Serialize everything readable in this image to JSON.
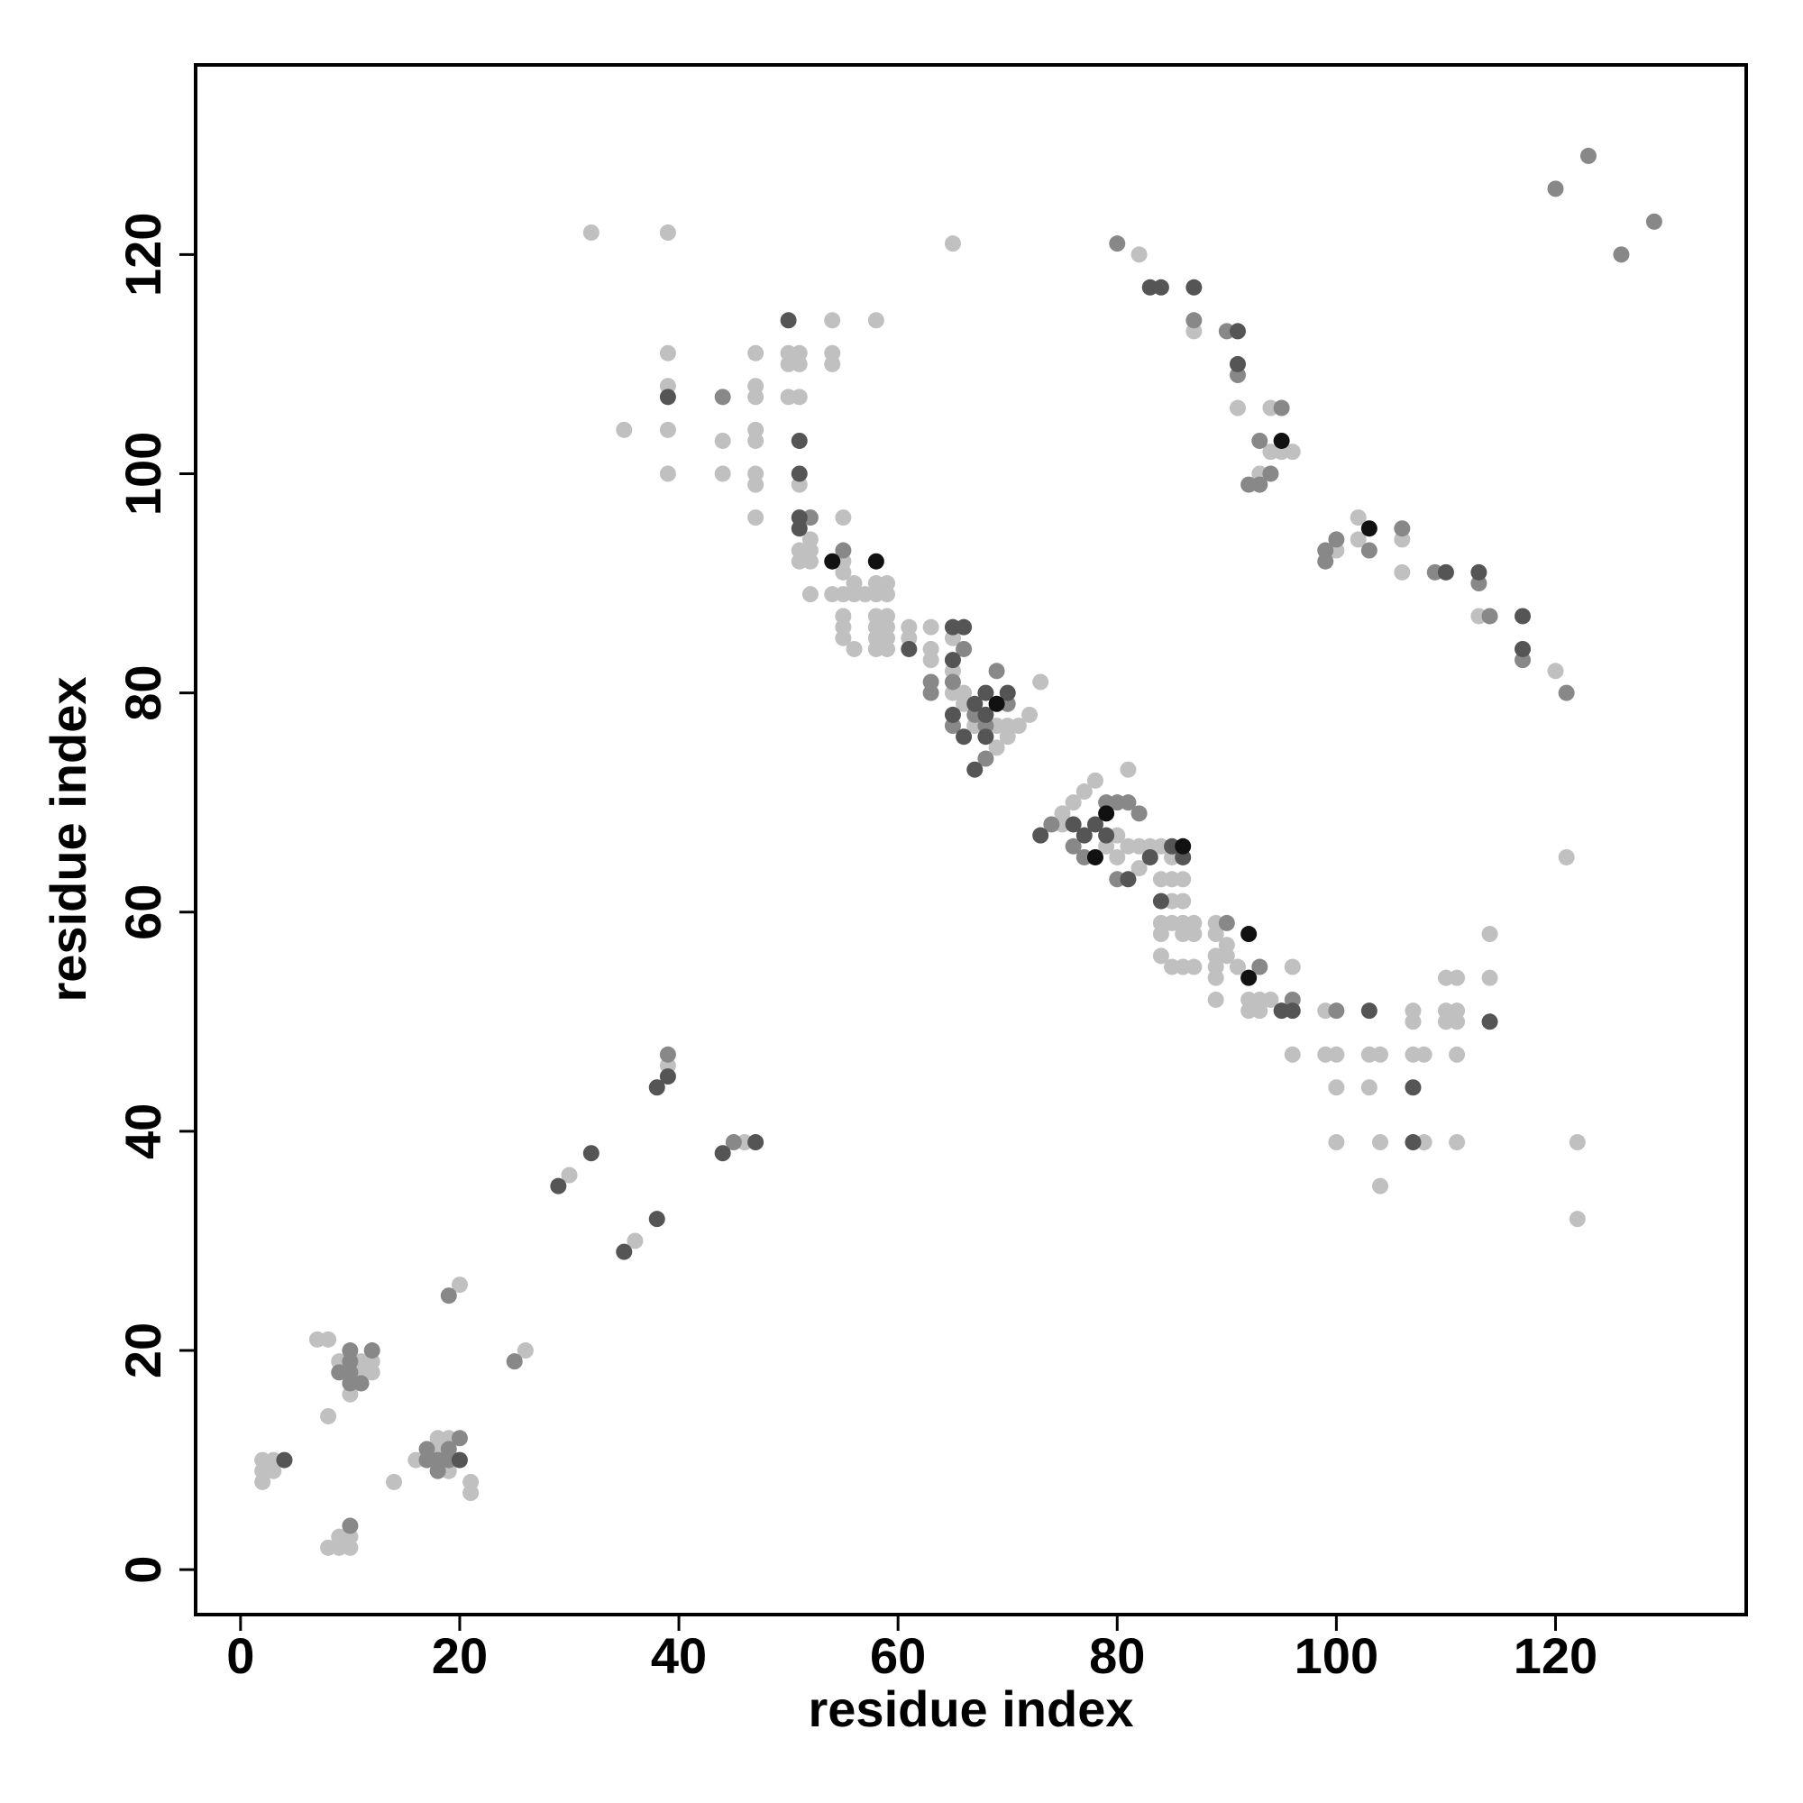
{
  "chart_data": {
    "type": "scatter",
    "x_label": "residue index",
    "y_label": "residue index",
    "xlim": [
      -4.1,
      137.4
    ],
    "ylim": [
      -4.1,
      137.3
    ],
    "xticks": [
      0,
      20,
      40,
      60,
      80,
      100,
      120
    ],
    "yticks": [
      0,
      20,
      40,
      60,
      80,
      100,
      120
    ],
    "grid": false,
    "series": [
      {
        "color": "#c0c0c0",
        "x": [
          2,
          2,
          2,
          3,
          3,
          8,
          9,
          9,
          10,
          10,
          7,
          8,
          8,
          9,
          10,
          11,
          11,
          12,
          12,
          14,
          16,
          18,
          18,
          19,
          19,
          21,
          21,
          20,
          26,
          30,
          36,
          39,
          46,
          32,
          39,
          35,
          39,
          39,
          39,
          39,
          44,
          44,
          47,
          47,
          47,
          47,
          47,
          47,
          47,
          47,
          50,
          50,
          50,
          51,
          51,
          51,
          51,
          51,
          51,
          52,
          52,
          52,
          52,
          54,
          54,
          54,
          54,
          55,
          55,
          55,
          55,
          55,
          55,
          55,
          56,
          56,
          56,
          57,
          58,
          58,
          58,
          58,
          58,
          58,
          58,
          59,
          59,
          59,
          59,
          59,
          59,
          61,
          61,
          63,
          63,
          63,
          65,
          65,
          65,
          66,
          66,
          67,
          69,
          69,
          70,
          70,
          71,
          72,
          73,
          65,
          75,
          75,
          76,
          77,
          78,
          79,
          80,
          80,
          81,
          81,
          82,
          82,
          83,
          84,
          84,
          85,
          85,
          85,
          85,
          86,
          86,
          84,
          84,
          84,
          85,
          86,
          86,
          86,
          87,
          87,
          87,
          89,
          89,
          89,
          89,
          89,
          89,
          90,
          90,
          91,
          92,
          92,
          93,
          93,
          94,
          96,
          96,
          99,
          99,
          100,
          100,
          100,
          103,
          103,
          104,
          104,
          104,
          107,
          107,
          107,
          108,
          108,
          110,
          110,
          110,
          111,
          111,
          111,
          111,
          111,
          114,
          114,
          121,
          122,
          122,
          82,
          87,
          91,
          94,
          94,
          95,
          96,
          93,
          100,
          102,
          102,
          106,
          106,
          113,
          120
        ],
        "values": [
          8,
          9,
          10,
          9,
          10,
          2,
          2,
          3,
          2,
          3,
          21,
          21,
          14,
          19,
          16,
          19,
          18,
          18,
          19,
          8,
          10,
          11,
          12,
          9,
          12,
          8,
          7,
          26,
          20,
          36,
          30,
          46,
          39,
          122,
          122,
          104,
          111,
          108,
          104,
          100,
          103,
          100,
          111,
          108,
          107,
          104,
          103,
          100,
          99,
          96,
          111,
          110,
          107,
          111,
          110,
          107,
          99,
          93,
          92,
          94,
          93,
          92,
          89,
          114,
          111,
          110,
          89,
          96,
          92,
          91,
          89,
          87,
          86,
          85,
          90,
          89,
          84,
          89,
          114,
          90,
          89,
          87,
          86,
          85,
          84,
          90,
          89,
          87,
          86,
          85,
          84,
          86,
          85,
          86,
          84,
          83,
          85,
          82,
          80,
          80,
          79,
          77,
          77,
          75,
          77,
          76,
          77,
          78,
          81,
          121,
          68,
          69,
          70,
          71,
          72,
          66,
          67,
          65,
          73,
          66,
          66,
          64,
          66,
          66,
          63,
          65,
          63,
          61,
          59,
          63,
          61,
          59,
          58,
          56,
          55,
          59,
          58,
          55,
          59,
          58,
          55,
          59,
          58,
          56,
          55,
          54,
          52,
          57,
          56,
          55,
          52,
          51,
          52,
          51,
          52,
          55,
          47,
          51,
          47,
          47,
          44,
          39,
          47,
          44,
          47,
          39,
          35,
          51,
          50,
          47,
          47,
          39,
          54,
          51,
          50,
          54,
          51,
          50,
          47,
          39,
          58,
          54,
          65,
          39,
          32,
          120,
          113,
          106,
          106,
          102,
          102,
          102,
          100,
          93,
          96,
          94,
          94,
          91,
          87,
          82
        ]
      },
      {
        "color": "#888888",
        "x": [
          10,
          9,
          10,
          10,
          10,
          10,
          11,
          12,
          17,
          17,
          18,
          18,
          19,
          19,
          20,
          19,
          25,
          39,
          45,
          44,
          52,
          55,
          63,
          63,
          65,
          65,
          66,
          67,
          68,
          68,
          69,
          70,
          74,
          76,
          77,
          79,
          80,
          80,
          81,
          82,
          90,
          93,
          96,
          100,
          80,
          87,
          90,
          91,
          93,
          95,
          92,
          93,
          94,
          99,
          99,
          100,
          103,
          106,
          109,
          113,
          114,
          117,
          121,
          120,
          123,
          126,
          129
        ],
        "values": [
          4,
          18,
          17,
          18,
          19,
          20,
          17,
          20,
          10,
          11,
          9,
          10,
          10,
          11,
          12,
          25,
          19,
          47,
          39,
          107,
          96,
          93,
          81,
          80,
          81,
          77,
          84,
          78,
          77,
          74,
          82,
          79,
          68,
          66,
          65,
          70,
          70,
          63,
          70,
          69,
          59,
          55,
          52,
          51,
          121,
          114,
          113,
          109,
          103,
          106,
          99,
          99,
          100,
          93,
          92,
          94,
          93,
          95,
          91,
          90,
          87,
          83,
          80,
          126,
          129,
          120,
          123
        ]
      },
      {
        "color": "#555555",
        "x": [
          4,
          20,
          29,
          32,
          35,
          38,
          38,
          39,
          44,
          47,
          39,
          50,
          51,
          51,
          51,
          51,
          61,
          65,
          65,
          65,
          66,
          66,
          67,
          67,
          68,
          68,
          68,
          70,
          73,
          76,
          77,
          78,
          79,
          81,
          83,
          84,
          85,
          86,
          95,
          96,
          103,
          107,
          107,
          114,
          83,
          84,
          87,
          91,
          91,
          110,
          113,
          117,
          117
        ],
        "values": [
          10,
          10,
          35,
          38,
          29,
          32,
          44,
          45,
          38,
          39,
          107,
          114,
          103,
          100,
          96,
          95,
          84,
          86,
          83,
          78,
          86,
          76,
          79,
          73,
          80,
          78,
          76,
          80,
          67,
          68,
          67,
          68,
          67,
          63,
          65,
          61,
          66,
          65,
          51,
          51,
          51,
          44,
          39,
          50,
          117,
          117,
          117,
          113,
          110,
          91,
          91,
          87,
          84
        ]
      },
      {
        "color": "#111111",
        "x": [
          54,
          58,
          69,
          78,
          79,
          86,
          92,
          92,
          95,
          103
        ],
        "values": [
          92,
          92,
          79,
          65,
          69,
          66,
          58,
          54,
          103,
          95
        ]
      }
    ]
  }
}
